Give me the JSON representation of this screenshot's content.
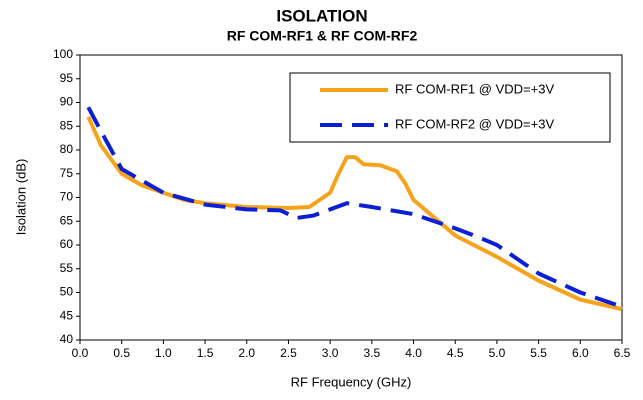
{
  "chart_data": {
    "type": "line",
    "title": "ISOLATION",
    "subtitle": "RF COM-RF1 & RF COM-RF2",
    "xlabel": "RF Frequency (GHz)",
    "ylabel": "Isolation (dB)",
    "xlim": [
      0,
      6.5
    ],
    "ylim": [
      40,
      100
    ],
    "xticks": [
      {
        "value": 0,
        "label": "0.0"
      },
      0.5,
      {
        "value": 1,
        "label": "1.0"
      },
      1.5,
      {
        "value": 2,
        "label": "2.0"
      },
      2.5,
      {
        "value": 3,
        "label": "3.0"
      },
      3.5,
      {
        "value": 4,
        "label": "4.0"
      },
      4.5,
      {
        "value": 5,
        "label": "5.0"
      },
      5.5,
      {
        "value": 6,
        "label": "6.0"
      },
      6.5
    ],
    "yticks": [
      40,
      45,
      50,
      55,
      60,
      65,
      70,
      75,
      80,
      85,
      90,
      95,
      100
    ],
    "grid": false,
    "legend_position": "upper right",
    "series": [
      {
        "name": "RF COM-RF1 @ VDD=+3V",
        "color": "#f7a21b",
        "dash": false,
        "x": [
          0.1,
          0.25,
          0.5,
          0.75,
          1.0,
          1.25,
          1.5,
          2.0,
          2.5,
          2.75,
          3.0,
          3.1,
          3.2,
          3.3,
          3.4,
          3.6,
          3.8,
          3.9,
          4.0,
          4.3,
          4.5,
          5.0,
          5.5,
          6.0,
          6.5
        ],
        "values": [
          87,
          81,
          75,
          72.5,
          71,
          69.5,
          68.8,
          68,
          67.8,
          68,
          71,
          75,
          78.5,
          78.5,
          77,
          76.8,
          75.5,
          73,
          69.5,
          65,
          62,
          57.5,
          52.5,
          48.5,
          46.5
        ]
      },
      {
        "name": "RF COM-RF2 @ VDD=+3V",
        "color": "#0a1fd6",
        "dash": true,
        "x": [
          0.1,
          0.25,
          0.5,
          1.0,
          1.5,
          2.0,
          2.4,
          2.6,
          2.8,
          3.0,
          3.2,
          3.5,
          4.0,
          4.5,
          4.8,
          5.0,
          5.5,
          6.0,
          6.5
        ],
        "values": [
          89,
          84,
          76,
          71,
          68.5,
          67.5,
          67.3,
          65.7,
          66.2,
          67.5,
          68.8,
          68,
          66.5,
          63.5,
          61.5,
          60,
          54,
          50,
          47
        ]
      }
    ]
  }
}
